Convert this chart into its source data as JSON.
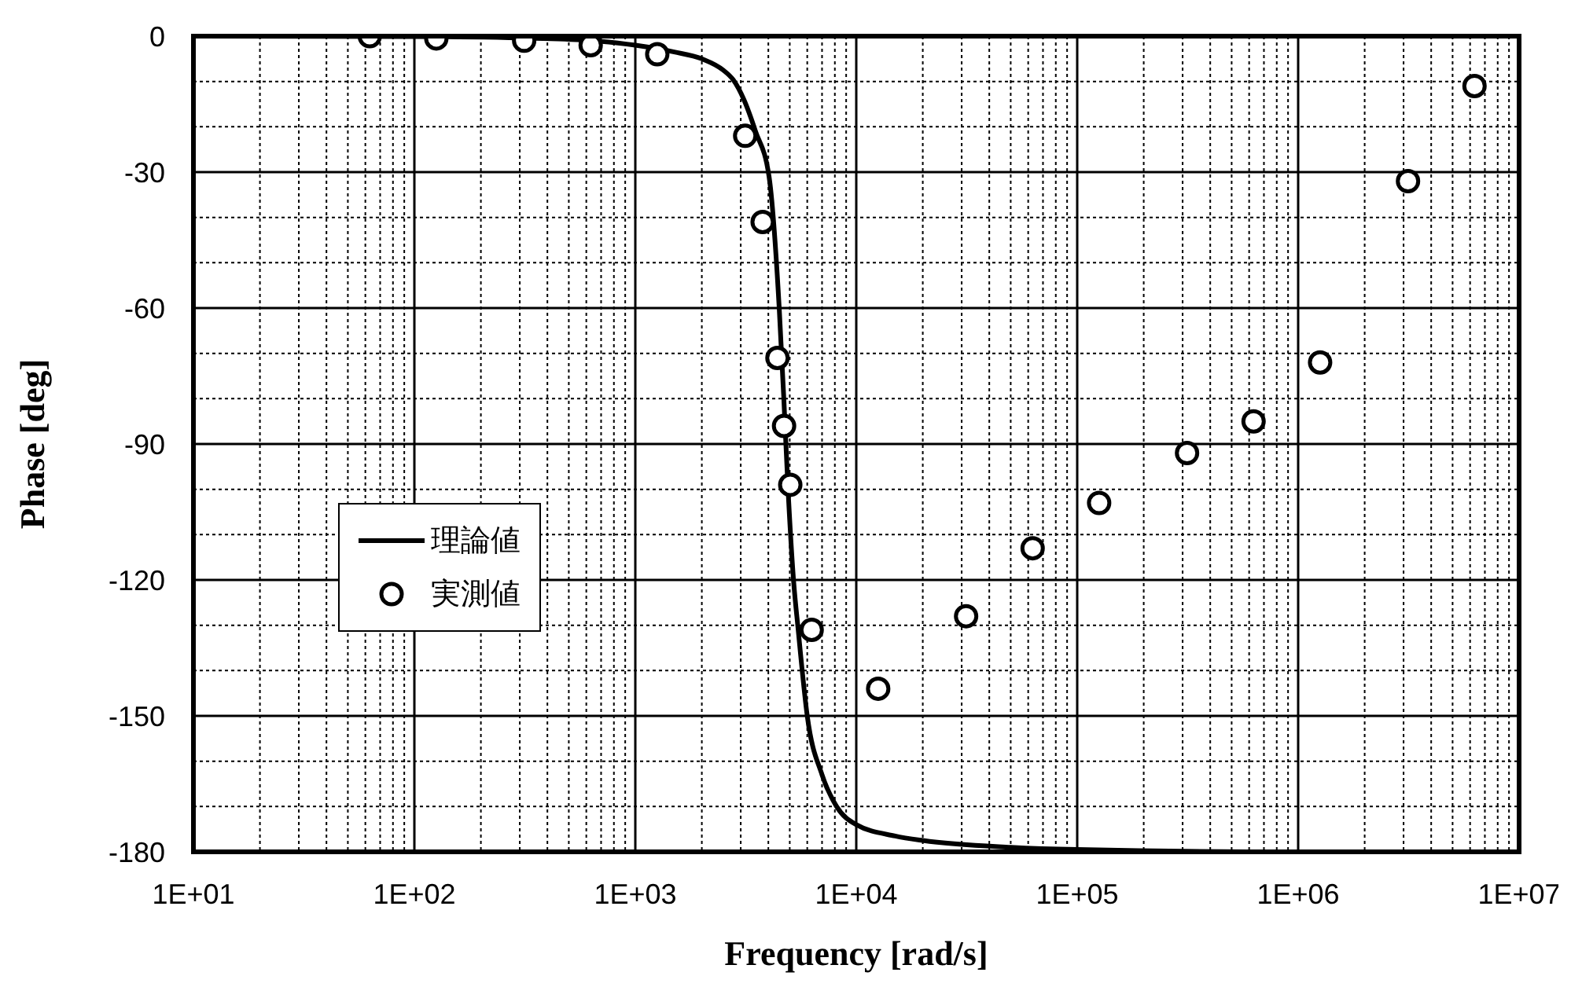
{
  "chart_data": {
    "type": "line",
    "xlabel": "Frequency [rad/s]",
    "ylabel": "Phase [deg]",
    "log": "x",
    "grid": true,
    "legend": "left",
    "xlim": [
      10,
      10000000
    ],
    "xticks": [
      {
        "value": 10,
        "label": "1E+01"
      },
      {
        "value": 20,
        "label": null
      },
      {
        "value": 30,
        "label": null
      },
      {
        "value": 40,
        "label": null
      },
      {
        "value": 50,
        "label": null
      },
      {
        "value": 60,
        "label": null
      },
      {
        "value": 70,
        "label": null
      },
      {
        "value": 80,
        "label": null
      },
      {
        "value": 90,
        "label": null
      },
      {
        "value": 100,
        "label": "1E+02"
      },
      {
        "value": 200,
        "label": null
      },
      {
        "value": 300,
        "label": null
      },
      {
        "value": 400,
        "label": null
      },
      {
        "value": 500,
        "label": null
      },
      {
        "value": 600,
        "label": null
      },
      {
        "value": 700,
        "label": null
      },
      {
        "value": 800,
        "label": null
      },
      {
        "value": 900,
        "label": null
      },
      {
        "value": 1000,
        "label": "1E+03"
      },
      {
        "value": 2000,
        "label": null
      },
      {
        "value": 3000,
        "label": null
      },
      {
        "value": 4000,
        "label": null
      },
      {
        "value": 5000,
        "label": null
      },
      {
        "value": 6000,
        "label": null
      },
      {
        "value": 7000,
        "label": null
      },
      {
        "value": 8000,
        "label": null
      },
      {
        "value": 9000,
        "label": null
      },
      {
        "value": 10000,
        "label": "1E+04"
      },
      {
        "value": 20000,
        "label": null
      },
      {
        "value": 30000,
        "label": null
      },
      {
        "value": 40000,
        "label": null
      },
      {
        "value": 50000,
        "label": null
      },
      {
        "value": 60000,
        "label": null
      },
      {
        "value": 70000,
        "label": null
      },
      {
        "value": 80000,
        "label": null
      },
      {
        "value": 90000,
        "label": null
      },
      {
        "value": 100000,
        "label": "1E+05"
      },
      {
        "value": 200000,
        "label": null
      },
      {
        "value": 300000,
        "label": null
      },
      {
        "value": 400000,
        "label": null
      },
      {
        "value": 500000,
        "label": null
      },
      {
        "value": 600000,
        "label": null
      },
      {
        "value": 700000,
        "label": null
      },
      {
        "value": 800000,
        "label": null
      },
      {
        "value": 900000,
        "label": null
      },
      {
        "value": 1000000,
        "label": "1E+06"
      },
      {
        "value": 2000000,
        "label": null
      },
      {
        "value": 3000000,
        "label": null
      },
      {
        "value": 4000000,
        "label": null
      },
      {
        "value": 5000000,
        "label": null
      },
      {
        "value": 6000000,
        "label": null
      },
      {
        "value": 7000000,
        "label": null
      },
      {
        "value": 8000000,
        "label": null
      },
      {
        "value": 9000000,
        "label": null
      },
      {
        "value": 10000000,
        "label": "1E+07"
      }
    ],
    "ylim": [
      -180,
      0
    ],
    "yticks": [
      0,
      {
        "value": -10,
        "label": null
      },
      {
        "value": -20,
        "label": null
      },
      -30,
      {
        "value": -40,
        "label": null
      },
      {
        "value": -50,
        "label": null
      },
      -60,
      {
        "value": -70,
        "label": null
      },
      {
        "value": -80,
        "label": null
      },
      -90,
      {
        "value": -100,
        "label": null
      },
      {
        "value": -110,
        "label": null
      },
      -120,
      {
        "value": -130,
        "label": null
      },
      {
        "value": -140,
        "label": null
      },
      -150,
      {
        "value": -160,
        "label": null
      },
      {
        "value": -170,
        "label": null
      },
      -180
    ],
    "series": [
      {
        "name": "理論値",
        "type": "line",
        "color": "#000000",
        "marker": "none",
        "line_style": "solid",
        "x": [
          10,
          100,
          300,
          600,
          1000,
          1500,
          2000,
          2500,
          2770,
          3100,
          3500,
          4030,
          4480,
          4700,
          4900,
          5200,
          5460,
          6000,
          7000,
          8150,
          10000,
          15000,
          20000,
          50000,
          100000,
          1000000,
          10000000
        ],
        "values": [
          0,
          -0.1,
          -0.4,
          -0.9,
          -2,
          -3.5,
          -5,
          -7.5,
          -9.6,
          -14,
          -21,
          -31,
          -60,
          -80,
          -99,
          -120,
          -131,
          -150,
          -163,
          -170,
          -174,
          -176.5,
          -177.5,
          -179,
          -179.5,
          -180,
          -180
        ]
      },
      {
        "name": "実測値",
        "type": "scatter",
        "color": "#000000",
        "marker": "circle",
        "x": [
          62.8,
          125.7,
          314,
          628,
          1257,
          3142,
          3770,
          4398,
          4712,
          5027,
          6283,
          12566,
          31416,
          62832,
          125664,
          314159,
          628318,
          1257000,
          3142000,
          6283000
        ],
        "values": [
          0,
          -0.5,
          -1,
          -2,
          -4,
          -22,
          -41,
          -71,
          -86,
          -99,
          -131,
          -144,
          -128,
          -113,
          -103,
          -92,
          -85,
          -72,
          -32,
          -11
        ]
      }
    ]
  }
}
